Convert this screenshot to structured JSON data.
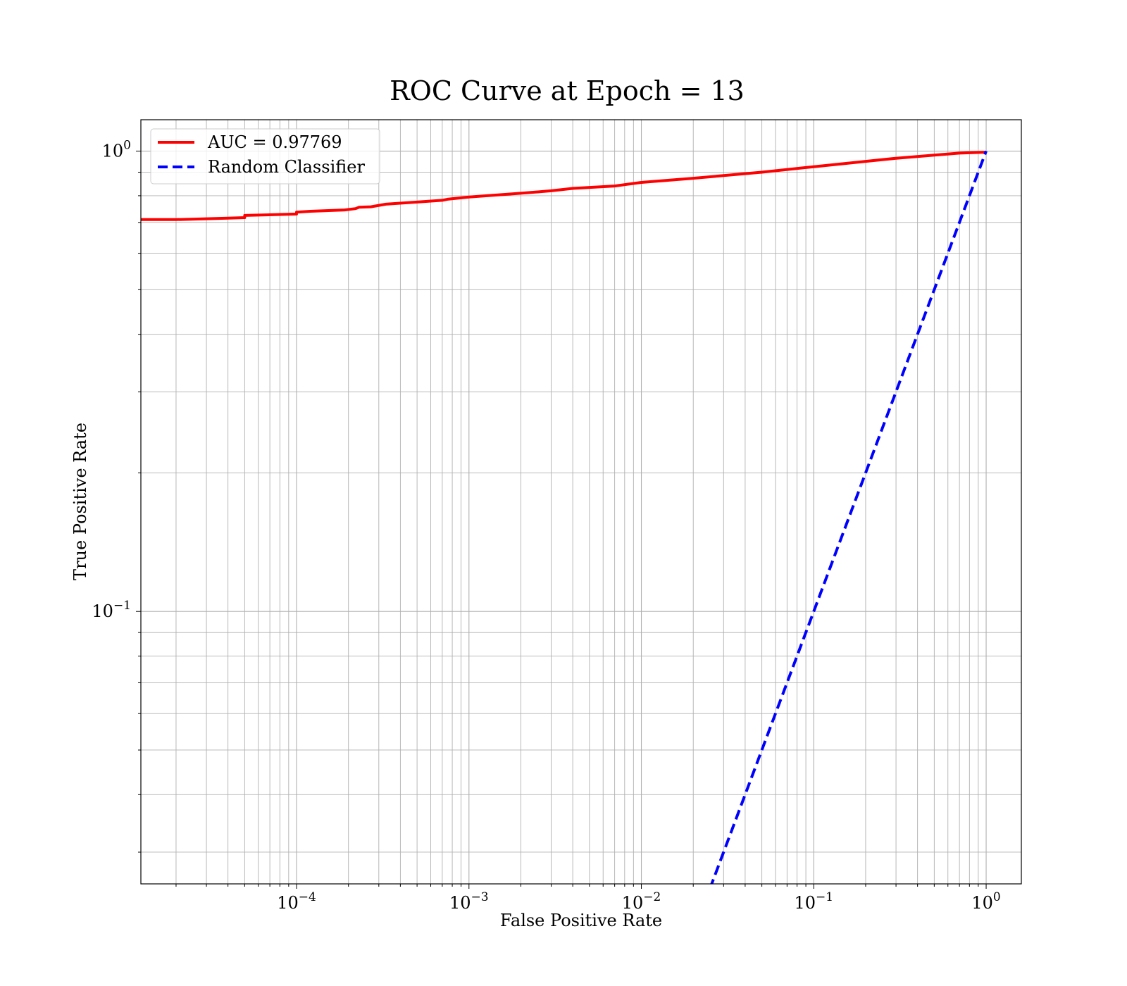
{
  "chart_data": {
    "type": "line",
    "title": "ROC Curve at Epoch = 13",
    "xlabel": "False Positive Rate",
    "ylabel": "True Positive Rate",
    "xscale": "log",
    "yscale": "log",
    "xlim": [
      1.25e-05,
      1.6
    ],
    "ylim": [
      0.0256,
      1.17
    ],
    "grid": "both major and minor",
    "legend_placement": "upper-left",
    "x_ticks": [
      {
        "value": 0.0001,
        "base": "10",
        "exp": "−4"
      },
      {
        "value": 0.001,
        "base": "10",
        "exp": "−3"
      },
      {
        "value": 0.01,
        "base": "10",
        "exp": "−2"
      },
      {
        "value": 0.1,
        "base": "10",
        "exp": "−1"
      },
      {
        "value": 1,
        "base": "10",
        "exp": "0"
      }
    ],
    "y_ticks": [
      {
        "value": 0.1,
        "base": "10",
        "exp": "−1"
      },
      {
        "value": 1,
        "base": "10",
        "exp": "0"
      }
    ],
    "series": [
      {
        "name": "AUC = 0.97769",
        "color": "#ff0000",
        "style": "solid",
        "x": [
          1.25e-05,
          2e-05,
          4e-05,
          5e-05,
          5e-05,
          0.0001,
          0.0001,
          0.00012,
          0.00019,
          0.00022,
          0.00023,
          0.00027,
          0.00033,
          0.0005,
          0.0007,
          0.00075,
          0.001,
          0.002,
          0.003,
          0.004,
          0.007,
          0.01,
          0.02,
          0.05,
          0.1,
          0.2,
          0.3,
          0.5,
          0.7,
          1.0
        ],
        "y": [
          0.71,
          0.71,
          0.715,
          0.717,
          0.725,
          0.73,
          0.737,
          0.74,
          0.745,
          0.75,
          0.755,
          0.757,
          0.767,
          0.775,
          0.782,
          0.786,
          0.795,
          0.81,
          0.82,
          0.83,
          0.84,
          0.855,
          0.873,
          0.9,
          0.925,
          0.95,
          0.965,
          0.98,
          0.99,
          0.995
        ]
      },
      {
        "name": "Random Classifier",
        "color": "#0000ff",
        "style": "dashed",
        "x": [
          0.025,
          1.0
        ],
        "y": [
          0.025,
          1.0
        ]
      }
    ]
  }
}
